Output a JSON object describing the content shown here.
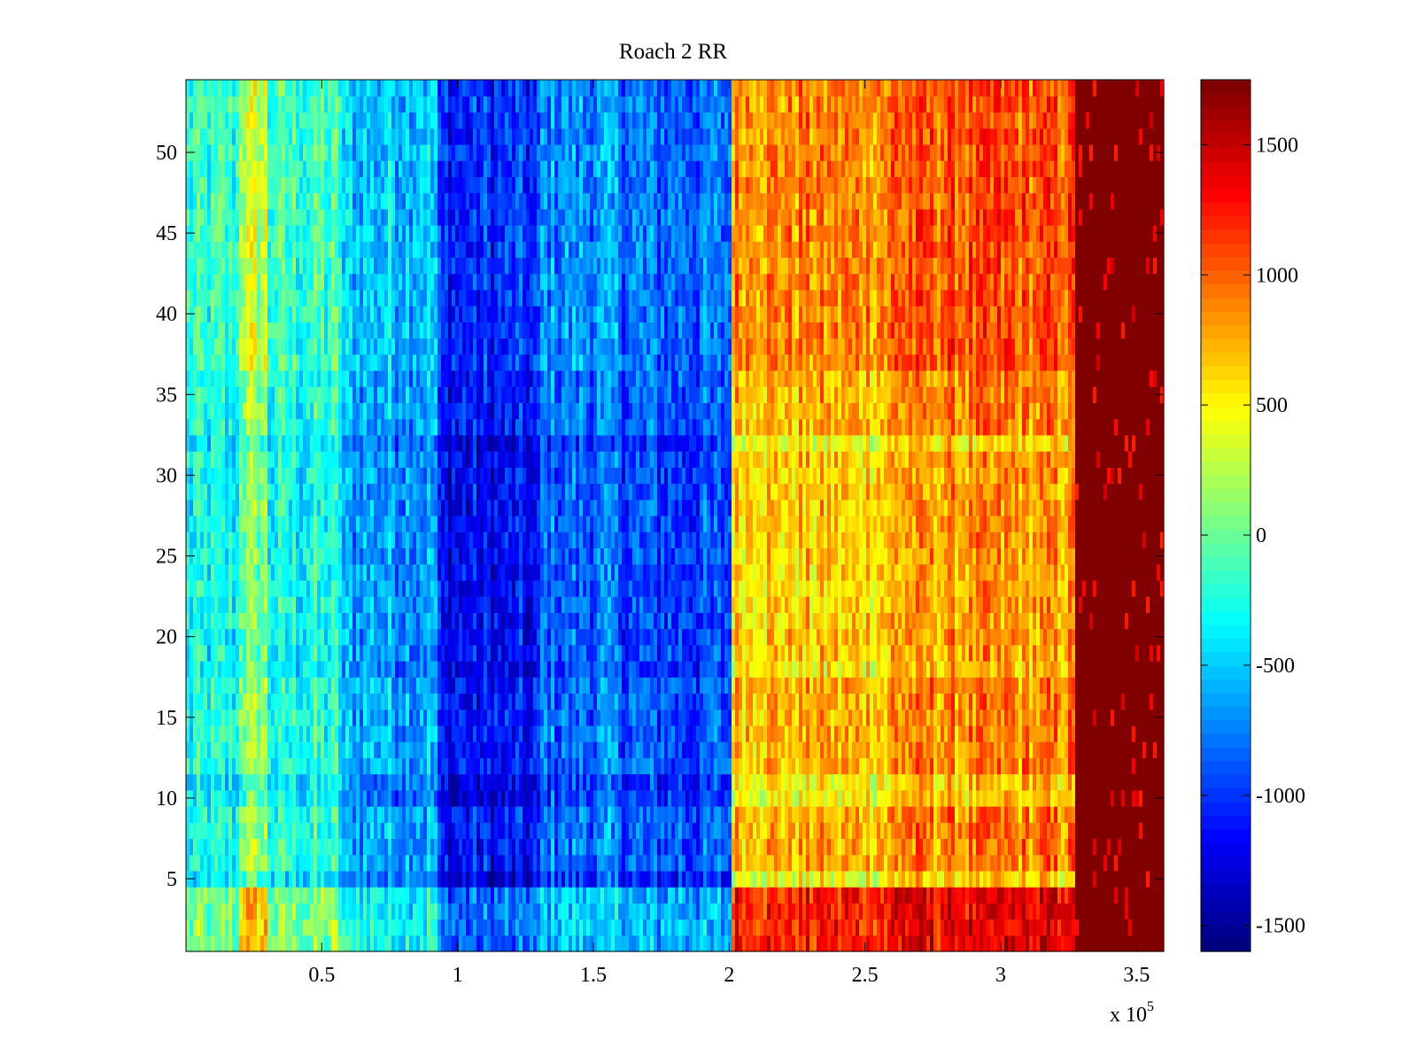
{
  "chart_data": {
    "type": "heatmap",
    "title": "Roach 2 RR",
    "xlabel": "",
    "ylabel": "",
    "x_multiplier_label": "x 10",
    "x_multiplier_exponent": "5",
    "xlim": [
      0.0,
      3.6
    ],
    "ylim": [
      0.5,
      54.5
    ],
    "x_ticks": [
      0.5,
      1,
      1.5,
      2,
      2.5,
      3,
      3.5
    ],
    "x_tick_labels": [
      "0.5",
      "1",
      "1.5",
      "2",
      "2.5",
      "3",
      "3.5"
    ],
    "y_ticks": [
      5,
      10,
      15,
      20,
      25,
      30,
      35,
      40,
      45,
      50
    ],
    "y_tick_labels": [
      "5",
      "10",
      "15",
      "20",
      "25",
      "30",
      "35",
      "40",
      "45",
      "50"
    ],
    "colormap": "jet",
    "clim": [
      -1600,
      1750
    ],
    "colorbar_ticks": [
      -1500,
      -1000,
      -500,
      0,
      500,
      1000,
      1500
    ],
    "colorbar_tick_labels": [
      "-1500",
      "-1000",
      "-500",
      "0",
      "500",
      "1000",
      "1500"
    ],
    "rows": 54,
    "segments": [
      {
        "x_start": 0.0,
        "x_end": 0.2,
        "base_value": -300
      },
      {
        "x_start": 0.2,
        "x_end": 0.3,
        "base_value": 150
      },
      {
        "x_start": 0.3,
        "x_end": 0.58,
        "base_value": -250
      },
      {
        "x_start": 0.58,
        "x_end": 0.93,
        "base_value": -600
      },
      {
        "x_start": 0.93,
        "x_end": 1.3,
        "base_value": -1150
      },
      {
        "x_start": 1.3,
        "x_end": 1.6,
        "base_value": -800
      },
      {
        "x_start": 1.6,
        "x_end": 2.01,
        "base_value": -900
      },
      {
        "x_start": 2.01,
        "x_end": 2.6,
        "base_value": 750
      },
      {
        "x_start": 2.6,
        "x_end": 3.28,
        "base_value": 900
      },
      {
        "x_start": 3.28,
        "x_end": 3.6,
        "base_value": 1750
      }
    ],
    "row_band_offsets": [
      {
        "y_start": 0.5,
        "y_end": 4.5,
        "offset": 500
      },
      {
        "y_start": 4.5,
        "y_end": 5.5,
        "offset": -300
      },
      {
        "y_start": 9.5,
        "y_end": 11.5,
        "offset": -250
      },
      {
        "y_start": 17.5,
        "y_end": 18.5,
        "offset": -200
      },
      {
        "y_start": 18.5,
        "y_end": 31.5,
        "offset": -100
      },
      {
        "y_start": 31.5,
        "y_end": 32.5,
        "offset": -300
      },
      {
        "y_start": 36.5,
        "y_end": 54.5,
        "offset": 150
      }
    ]
  }
}
